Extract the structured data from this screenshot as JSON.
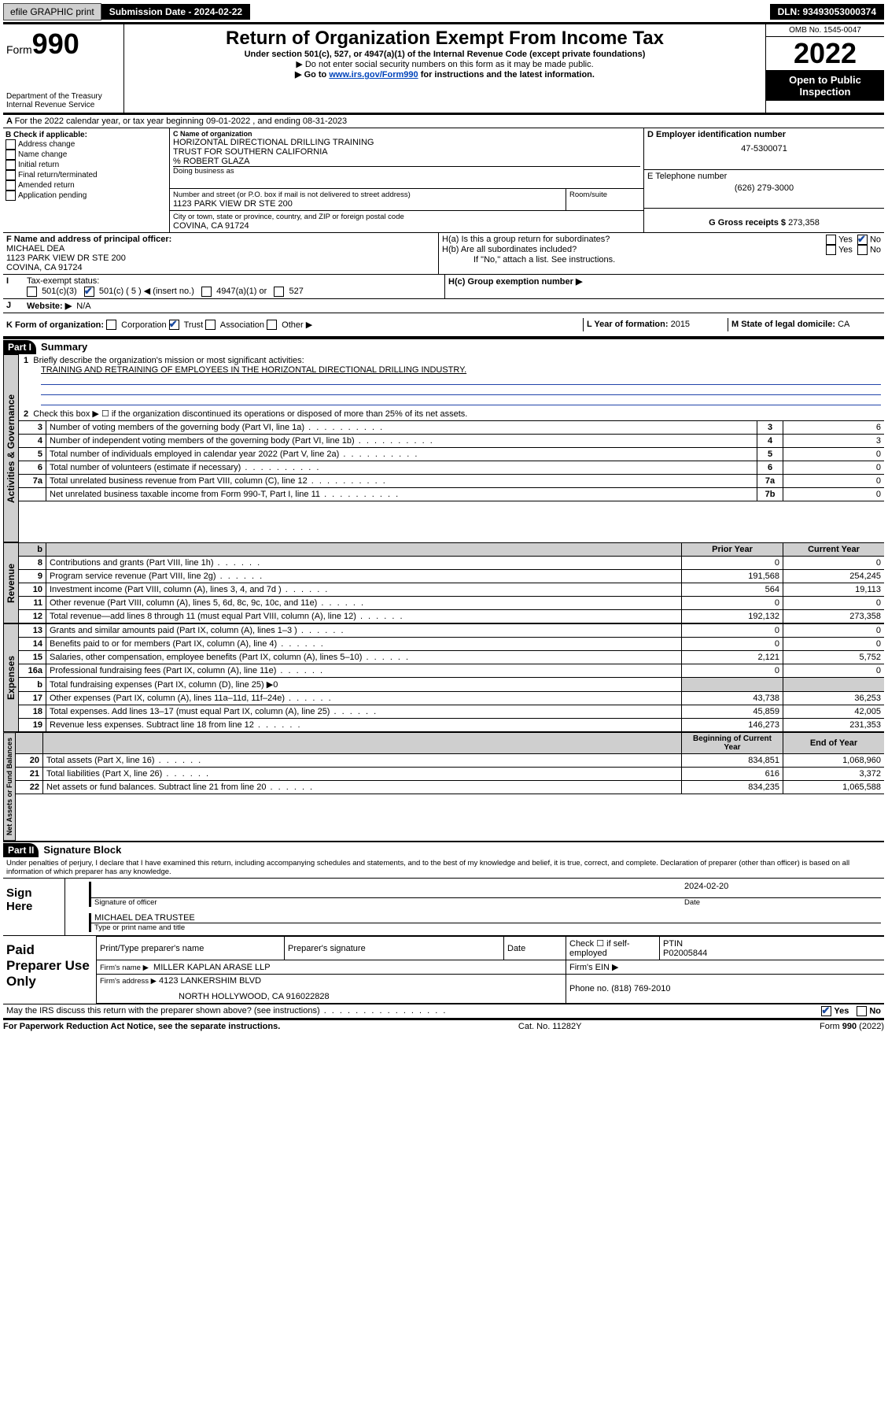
{
  "header": {
    "efile_btn": "efile GRAPHIC print",
    "submission_label": "Submission Date - 2024-02-22",
    "dln": "DLN: 93493053000374"
  },
  "masthead": {
    "form_prefix": "Form",
    "form_num": "990",
    "dept": "Department of the Treasury",
    "irs": "Internal Revenue Service",
    "title": "Return of Organization Exempt From Income Tax",
    "sub1": "Under section 501(c), 527, or 4947(a)(1) of the Internal Revenue Code (except private foundations)",
    "sub2": "▶ Do not enter social security numbers on this form as it may be made public.",
    "sub3_a": "▶ Go to ",
    "sub3_link": "www.irs.gov/Form990",
    "sub3_b": " for instructions and the latest information.",
    "omb": "OMB No. 1545-0047",
    "year": "2022",
    "otp": "Open to Public Inspection"
  },
  "period": {
    "line": "For the 2022 calendar year, or tax year beginning 09-01-2022    , and ending 08-31-2023"
  },
  "boxB": {
    "title": "B Check if applicable:",
    "opts": [
      "Address change",
      "Name change",
      "Initial return",
      "Final return/terminated",
      "Amended return",
      "Application pending"
    ]
  },
  "boxC": {
    "label": "C Name of organization",
    "name1": "HORIZONTAL DIRECTIONAL DRILLING TRAINING",
    "name2": "TRUST FOR SOUTHERN CALIFORNIA",
    "co": "% ROBERT GLAZA",
    "dba_label": "Doing business as",
    "addr_label": "Number and street (or P.O. box if mail is not delivered to street address)",
    "room_label": "Room/suite",
    "addr": "1123 PARK VIEW DR STE 200",
    "city_label": "City or town, state or province, country, and ZIP or foreign postal code",
    "city": "COVINA, CA  91724"
  },
  "boxD": {
    "label": "D Employer identification number",
    "val": "47-5300071"
  },
  "boxE": {
    "label": "E Telephone number",
    "val": "(626) 279-3000"
  },
  "boxG": {
    "label": "G Gross receipts $",
    "val": "273,358"
  },
  "boxF": {
    "label": "F  Name and address of principal officer:",
    "name": "MICHAEL DEA",
    "addr": "1123 PARK VIEW DR STE 200",
    "city": "COVINA, CA  91724"
  },
  "boxH": {
    "ha": "H(a)  Is this a group return for subordinates?",
    "hb": "H(b)  Are all subordinates included?",
    "hb2": "If \"No,\" attach a list. See instructions.",
    "hc": "H(c)  Group exemption number ▶",
    "yes": "Yes",
    "no": "No"
  },
  "taxExempt": {
    "label": "Tax-exempt status:",
    "a": "501(c)(3)",
    "b": "501(c) ( 5 ) ◀ (insert no.)",
    "c": "4947(a)(1) or",
    "d": "527"
  },
  "boxJ": {
    "label": "Website: ▶",
    "val": "N/A"
  },
  "boxK": {
    "label": "K Form of organization:",
    "opts": [
      "Corporation",
      "Trust",
      "Association",
      "Other ▶"
    ]
  },
  "boxL": {
    "label": "L Year of formation:",
    "val": "2015"
  },
  "boxM": {
    "label": "M State of legal domicile:",
    "val": "CA"
  },
  "partI": {
    "hdr": "Part I",
    "title": "Summary",
    "q1a": "Briefly describe the organization's mission or most significant activities:",
    "q1b": "TRAINING AND RETRAINING OF EMPLOYEES IN THE HORIZONTAL DIRECTIONAL DRILLING INDUSTRY.",
    "q2": "Check this box ▶ ☐  if the organization discontinued its operations or disposed of more than 25% of its net assets.",
    "lines_gov": [
      {
        "n": "3",
        "t": "Number of voting members of the governing body (Part VI, line 1a)",
        "ln": "3",
        "v": "6"
      },
      {
        "n": "4",
        "t": "Number of independent voting members of the governing body (Part VI, line 1b)",
        "ln": "4",
        "v": "3"
      },
      {
        "n": "5",
        "t": "Total number of individuals employed in calendar year 2022 (Part V, line 2a)",
        "ln": "5",
        "v": "0"
      },
      {
        "n": "6",
        "t": "Total number of volunteers (estimate if necessary)",
        "ln": "6",
        "v": "0"
      },
      {
        "n": "7a",
        "t": "Total unrelated business revenue from Part VIII, column (C), line 12",
        "ln": "7a",
        "v": "0"
      },
      {
        "n": "",
        "t": "Net unrelated business taxable income from Form 990-T, Part I, line 11",
        "ln": "7b",
        "v": "0"
      }
    ],
    "col_prior": "Prior Year",
    "col_curr": "Current Year",
    "rev": [
      {
        "n": "8",
        "t": "Contributions and grants (Part VIII, line 1h)",
        "p": "0",
        "c": "0"
      },
      {
        "n": "9",
        "t": "Program service revenue (Part VIII, line 2g)",
        "p": "191,568",
        "c": "254,245"
      },
      {
        "n": "10",
        "t": "Investment income (Part VIII, column (A), lines 3, 4, and 7d )",
        "p": "564",
        "c": "19,113"
      },
      {
        "n": "11",
        "t": "Other revenue (Part VIII, column (A), lines 5, 6d, 8c, 9c, 10c, and 11e)",
        "p": "0",
        "c": "0"
      },
      {
        "n": "12",
        "t": "Total revenue—add lines 8 through 11 (must equal Part VIII, column (A), line 12)",
        "p": "192,132",
        "c": "273,358"
      }
    ],
    "exp": [
      {
        "n": "13",
        "t": "Grants and similar amounts paid (Part IX, column (A), lines 1–3 )",
        "p": "0",
        "c": "0"
      },
      {
        "n": "14",
        "t": "Benefits paid to or for members (Part IX, column (A), line 4)",
        "p": "0",
        "c": "0"
      },
      {
        "n": "15",
        "t": "Salaries, other compensation, employee benefits (Part IX, column (A), lines 5–10)",
        "p": "2,121",
        "c": "5,752"
      },
      {
        "n": "16a",
        "t": "Professional fundraising fees (Part IX, column (A), line 11e)",
        "p": "0",
        "c": "0"
      },
      {
        "n": "b",
        "t": "Total fundraising expenses (Part IX, column (D), line 25) ▶0",
        "p": "",
        "c": "",
        "shade": true,
        "small": true
      },
      {
        "n": "17",
        "t": "Other expenses (Part IX, column (A), lines 11a–11d, 11f–24e)",
        "p": "43,738",
        "c": "36,253"
      },
      {
        "n": "18",
        "t": "Total expenses. Add lines 13–17 (must equal Part IX, column (A), line 25)",
        "p": "45,859",
        "c": "42,005"
      },
      {
        "n": "19",
        "t": "Revenue less expenses. Subtract line 18 from line 12",
        "p": "146,273",
        "c": "231,353"
      }
    ],
    "col_beg": "Beginning of Current Year",
    "col_end": "End of Year",
    "net": [
      {
        "n": "20",
        "t": "Total assets (Part X, line 16)",
        "p": "834,851",
        "c": "1,068,960"
      },
      {
        "n": "21",
        "t": "Total liabilities (Part X, line 26)",
        "p": "616",
        "c": "3,372"
      },
      {
        "n": "22",
        "t": "Net assets or fund balances. Subtract line 21 from line 20",
        "p": "834,235",
        "c": "1,065,588"
      }
    ],
    "tab_gov": "Activities & Governance",
    "tab_rev": "Revenue",
    "tab_exp": "Expenses",
    "tab_net": "Net Assets or Fund Balances"
  },
  "partII": {
    "hdr": "Part II",
    "title": "Signature Block",
    "decl": "Under penalties of perjury, I declare that I have examined this return, including accompanying schedules and statements, and to the best of my knowledge and belief, it is true, correct, and complete. Declaration of preparer (other than officer) is based on all information of which preparer has any knowledge.",
    "sign_here": "Sign Here",
    "sig_label": "Signature of officer",
    "date_label": "Date",
    "date": "2024-02-20",
    "officer": "MICHAEL DEA  TRUSTEE",
    "officer_label": "Type or print name and title",
    "paid": "Paid Preparer Use Only",
    "pp_name_l": "Print/Type preparer's name",
    "pp_sig_l": "Preparer's signature",
    "pp_date_l": "Date",
    "pp_check": "Check ☐ if self-employed",
    "ptin_l": "PTIN",
    "ptin": "P02005844",
    "firm_l": "Firm's name    ▶",
    "firm": "MILLER KAPLAN ARASE LLP",
    "ein_l": "Firm's EIN ▶",
    "faddr_l": "Firm's address ▶",
    "faddr1": "4123 LANKERSHIM BLVD",
    "faddr2": "NORTH HOLLYWOOD, CA  916022828",
    "phone_l": "Phone no.",
    "phone": "(818) 769-2010",
    "q": "May the IRS discuss this return with the preparer shown above? (see instructions)"
  },
  "footer": {
    "pra": "For Paperwork Reduction Act Notice, see the separate instructions.",
    "cat": "Cat. No. 11282Y",
    "form": "Form 990 (2022)"
  }
}
